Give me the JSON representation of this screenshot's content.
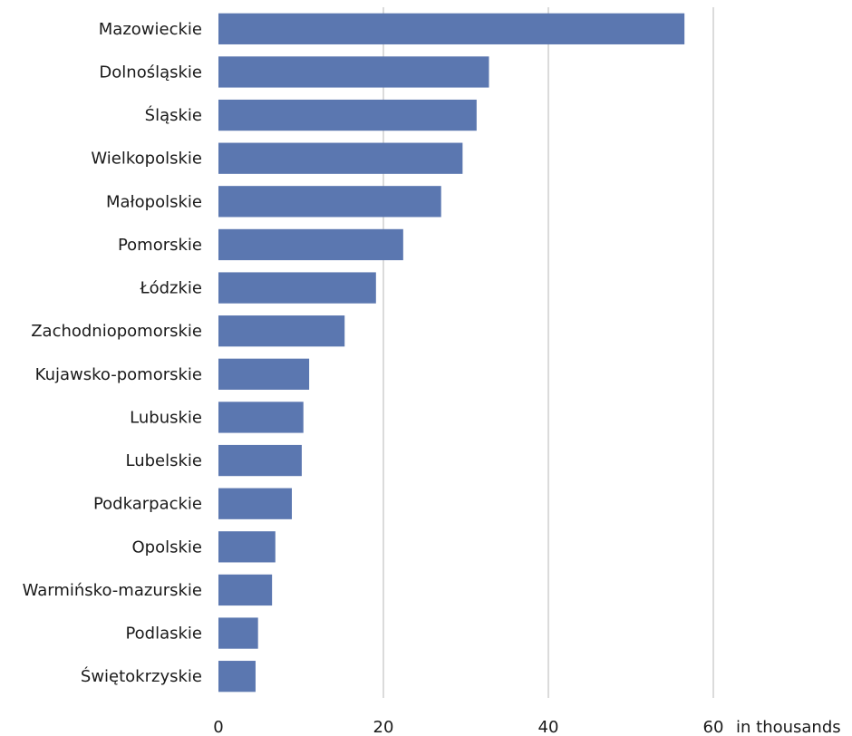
{
  "chart_data": {
    "type": "bar",
    "orientation": "horizontal",
    "categories": [
      "Mazowieckie",
      "Dolnośląskie",
      "Śląskie",
      "Wielkopolskie",
      "Małopolskie",
      "Pomorskie",
      "Łódzkie",
      "Zachodniopomorskie",
      "Kujawsko-pomorskie",
      "Lubuskie",
      "Lubelskie",
      "Podkarpackie",
      "Opolskie",
      "Warmińsko-mazurskie",
      "Podlaskie",
      "Świętokrzyskie"
    ],
    "values": [
      56.5,
      32.8,
      31.3,
      29.6,
      27.0,
      22.4,
      19.1,
      15.3,
      11.0,
      10.3,
      10.1,
      8.9,
      6.9,
      6.5,
      4.8,
      4.5
    ],
    "x_ticks": [
      "0",
      "20",
      "40",
      "60"
    ],
    "xlim": [
      0,
      60
    ],
    "unit_label": "in thousands",
    "bar_color": "#5b77b0",
    "grid_color": "#cfcfcf",
    "grid": true,
    "legend": false
  }
}
